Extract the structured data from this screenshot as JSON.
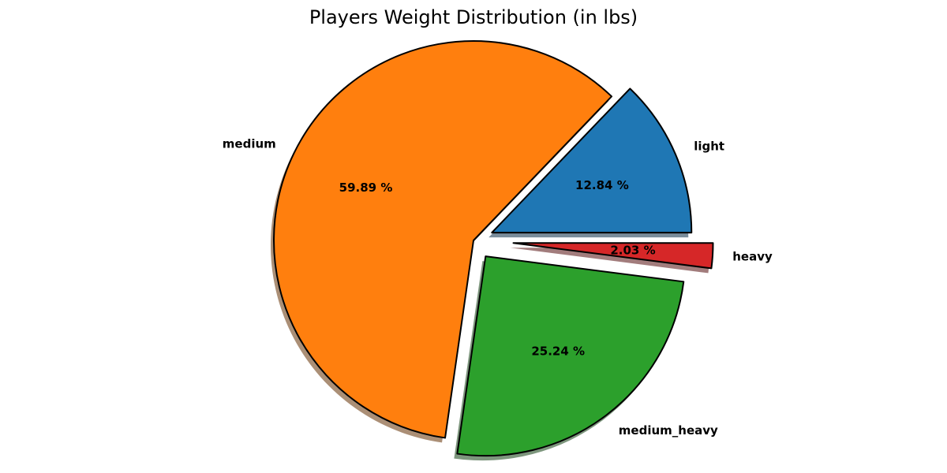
{
  "chart_data": {
    "type": "pie",
    "title": "Players Weight Distribution (in lbs)",
    "slices": [
      {
        "label": "light",
        "value": 12.84,
        "pct_label": "12.84 %",
        "color": "#1f77b4",
        "explode": 0.1
      },
      {
        "label": "medium",
        "value": 59.89,
        "pct_label": "59.89 %",
        "color": "#ff7f0e",
        "explode": 0
      },
      {
        "label": "medium_heavy",
        "value": 25.24,
        "pct_label": "25.24 %",
        "color": "#2ca02c",
        "explode": 0.1
      },
      {
        "label": "heavy",
        "value": 2.03,
        "pct_label": "2.03 %",
        "color": "#d62728",
        "explode": 0.2
      }
    ],
    "start_angle": 0,
    "shadow": true,
    "edge_color": "#000000"
  }
}
